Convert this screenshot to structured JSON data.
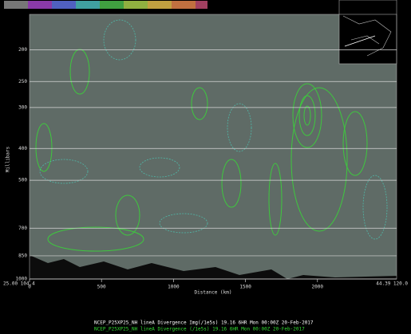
{
  "chart_data": {
    "type": "cross-section",
    "y_label": "Millibars",
    "x_label": "Distance (km)",
    "ylim": [
      1000,
      156
    ],
    "log_y": true,
    "yticks": [
      200,
      250,
      300,
      400,
      500,
      700,
      850,
      1000
    ],
    "xlim": [
      0,
      2550
    ],
    "xticks": [
      0,
      500,
      1000,
      1500,
      2000
    ],
    "grid": true,
    "corner_labels": [
      "25.00 104.4",
      "44.39 120.0"
    ],
    "legend": [
      {
        "text": "NCEP_P25XP25_NH lineA Divergence Img(/1e5s)  19.16  6HR Mon 00:00Z 20-Feb-2017",
        "color": "#ffffff"
      },
      {
        "text": "NCEP_P25XP25_NH lineA Divergence (/1e5s)  19.16  6HR Mon 00:00Z 20-Feb-2017",
        "color": "#33dd33"
      }
    ]
  }
}
